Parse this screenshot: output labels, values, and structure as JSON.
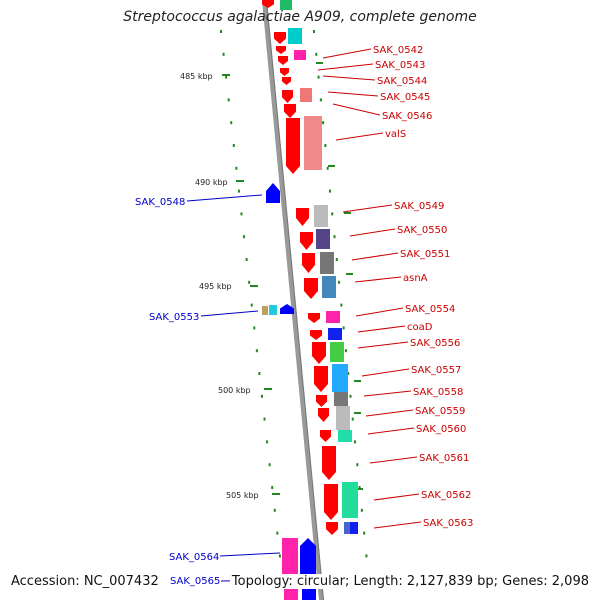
{
  "title": "Streptococcus agalactiae A909, complete genome",
  "footer": {
    "accession": "Accession: NC_007432",
    "summary": "Topology: circular; Length: 2,127,839 bp; Genes: 2,098"
  },
  "colors": {
    "forward_gene": "#ff0000",
    "reverse_gene": "#0000ff",
    "forward_label": "#cc0000",
    "reverse_label": "#0000cc",
    "tick": "#228822",
    "backbone": "#999999"
  },
  "scale_labels": [
    "485 kbp",
    "490 kbp",
    "495 kbp",
    "500 kbp",
    "505 kbp"
  ],
  "forward_labels": [
    "SAK_0542",
    "SAK_0543",
    "SAK_0544",
    "SAK_0545",
    "SAK_0546",
    "valS",
    "SAK_0549",
    "SAK_0550",
    "SAK_0551",
    "asnA",
    "SAK_0554",
    "coaD",
    "SAK_0556",
    "SAK_0557",
    "SAK_0558",
    "SAK_0559",
    "SAK_0560",
    "SAK_0561",
    "SAK_0562",
    "SAK_0563"
  ],
  "reverse_labels": [
    "SAK_0548",
    "SAK_0553",
    "SAK_0564",
    "SAK_0565"
  ]
}
